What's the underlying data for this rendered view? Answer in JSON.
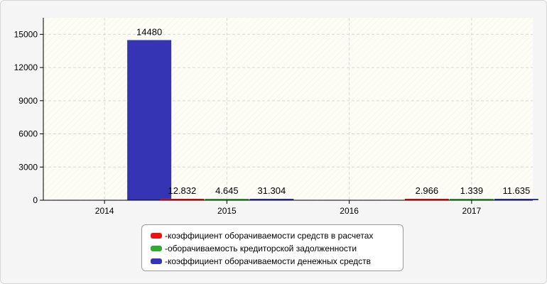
{
  "chart_data": {
    "type": "bar",
    "title": "",
    "xlabel": "",
    "ylabel": "",
    "ylim": [
      0,
      16500
    ],
    "yticks": [
      0,
      3000,
      6000,
      9000,
      12000,
      15000
    ],
    "categories": [
      "2014",
      "2015",
      "2016",
      "2017"
    ],
    "grid": true,
    "legend_placement": "bottom-center",
    "series": [
      {
        "name": "коэффициент оборачиваемости средств в расчетах",
        "color": "#ee1111",
        "values": [
          null,
          12.832,
          null,
          2.966
        ],
        "labels": [
          "",
          "12.832",
          "",
          "2.966"
        ]
      },
      {
        "name": "оборачиваемость кредиторской задолженности",
        "color": "#33aa33",
        "values": [
          null,
          4.645,
          null,
          1.339
        ],
        "labels": [
          "",
          "4.645",
          "",
          "1.339"
        ]
      },
      {
        "name": "коэффициент оборачиваемости денежных средств",
        "color": "#3434b4",
        "values": [
          14480,
          31.304,
          null,
          11.635
        ],
        "labels": [
          "14480",
          "31.304",
          "",
          "11.635"
        ]
      }
    ]
  },
  "legend": {
    "prefix": "- ",
    "items": [
      {
        "label": "коэффициент оборачиваемости средств в расчетах",
        "color": "#ee1111"
      },
      {
        "label": "оборачиваемость кредиторской задолженности",
        "color": "#33aa33"
      },
      {
        "label": "коэффициент оборачиваемости денежных средств",
        "color": "#3434b4"
      }
    ]
  }
}
